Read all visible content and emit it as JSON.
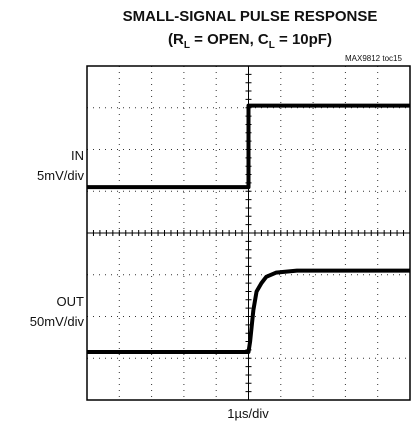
{
  "chart_data": {
    "type": "scope",
    "title": "SMALL-SIGNAL PULSE RESPONSE",
    "subtitle": [
      "(R",
      "L",
      " = OPEN, C",
      "L",
      " = 10pF)"
    ],
    "note": "MAX9812 toc15",
    "xlabel": "1µs/div",
    "channel_labels": [
      [
        "IN",
        "5mV/div"
      ],
      [
        "OUT",
        "50mV/div"
      ]
    ],
    "xlim": [
      0,
      10
    ],
    "ylim": [
      -4,
      4
    ],
    "xticks": [
      0,
      1,
      2,
      3,
      4,
      5,
      6,
      7,
      8,
      9,
      10
    ],
    "yticks": [
      -4,
      -3,
      -2,
      -1,
      0,
      1,
      2,
      3,
      4
    ],
    "grid": true,
    "series": [
      {
        "name": "IN",
        "color": "#000000",
        "x": [
          0,
          5,
          5,
          10
        ],
        "values": [
          1.1,
          1.1,
          3.05,
          3.05
        ]
      },
      {
        "name": "OUT",
        "color": "#000000",
        "x": [
          0,
          5.0,
          5.05,
          5.15,
          5.25,
          5.4,
          5.55,
          5.85,
          6.5,
          10
        ],
        "values": [
          -2.85,
          -2.85,
          -2.6,
          -1.85,
          -1.4,
          -1.2,
          -1.05,
          -0.95,
          -0.9,
          -0.9
        ]
      }
    ]
  }
}
